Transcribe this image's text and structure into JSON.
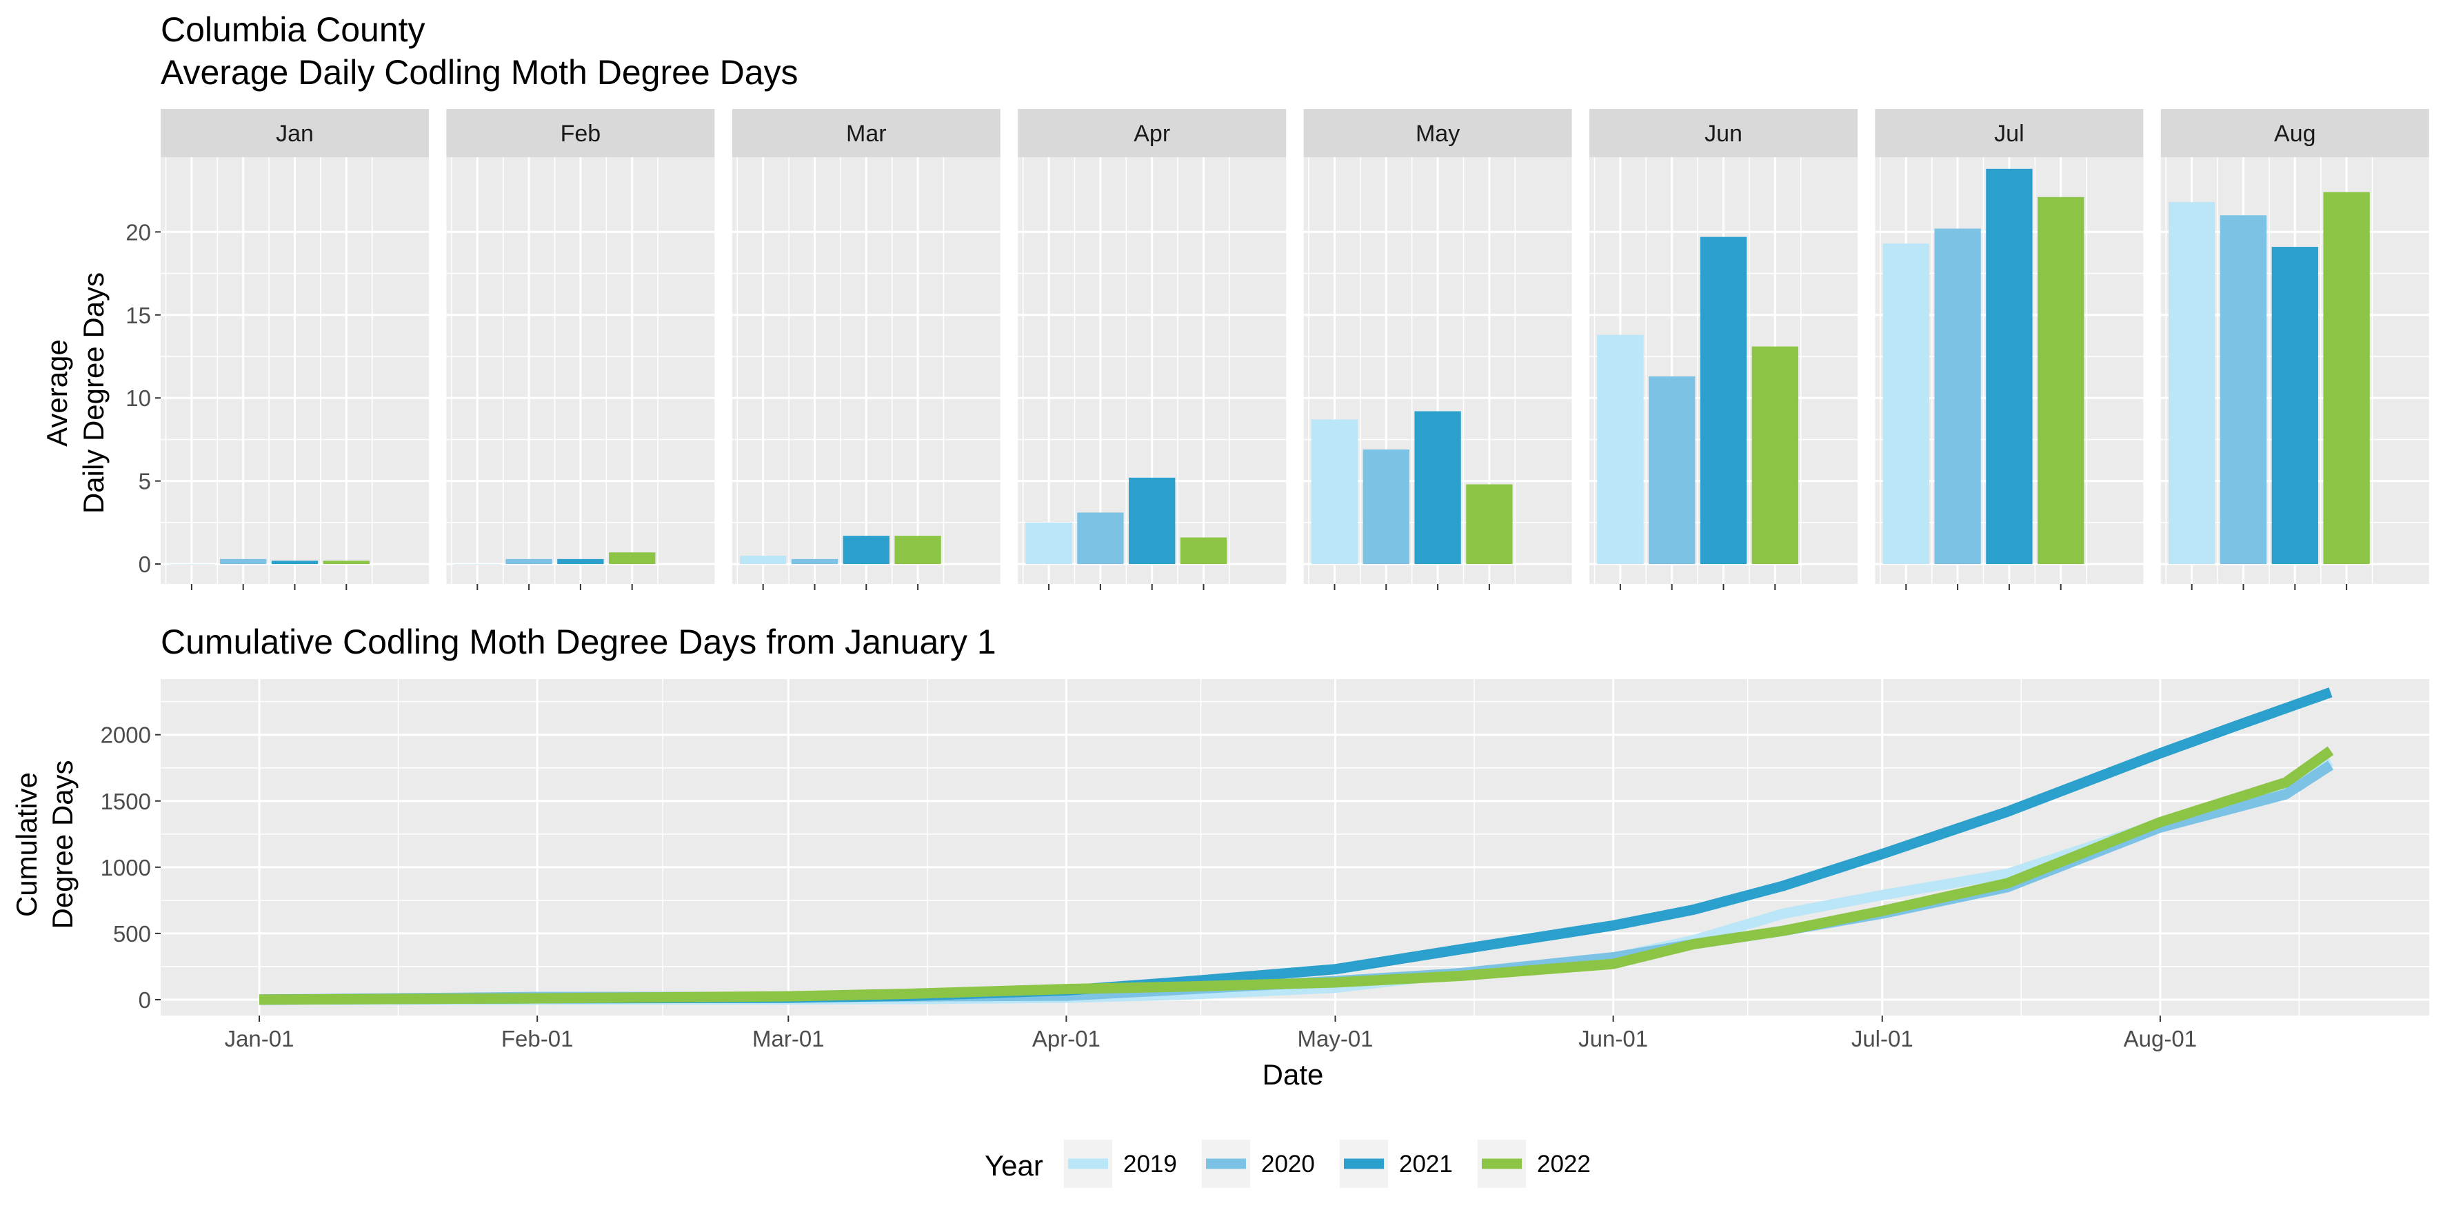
{
  "colors": {
    "2019": "#bae6f7",
    "2020": "#7cc2e4",
    "2021": "#2ba0cc",
    "2022": "#8cc546",
    "panel_bg": "#ebebeb",
    "strip_bg": "#d9d9d9",
    "grid": "#ffffff"
  },
  "legend": {
    "title": "Year",
    "placement": "bottom",
    "items": [
      "2019",
      "2020",
      "2021",
      "2022"
    ]
  },
  "chart_data": [
    {
      "type": "bar",
      "title_line1": "Columbia County",
      "title_line2": "Average Daily Codling Moth Degree Days",
      "ylabel_line1": "Average",
      "ylabel_line2": "Daily Degree Days",
      "ylim": [
        -1.2,
        24.5
      ],
      "yticks": [
        0,
        5,
        10,
        15,
        20
      ],
      "ytick_labels": [
        "0",
        "5",
        "10",
        "15",
        "20"
      ],
      "facets": [
        "Jan",
        "Feb",
        "Mar",
        "Apr",
        "May",
        "Jun",
        "Jul",
        "Aug"
      ],
      "series": [
        {
          "name": "2019",
          "values": [
            0.0,
            0.0,
            0.5,
            2.5,
            8.7,
            13.8,
            19.3,
            21.8
          ]
        },
        {
          "name": "2020",
          "values": [
            0.3,
            0.3,
            0.3,
            3.1,
            6.9,
            11.3,
            20.2,
            21.0
          ]
        },
        {
          "name": "2021",
          "values": [
            0.2,
            0.3,
            1.7,
            5.2,
            9.2,
            19.7,
            23.8,
            19.1
          ]
        },
        {
          "name": "2022",
          "values": [
            0.2,
            0.7,
            1.7,
            1.6,
            4.8,
            13.1,
            22.1,
            22.4
          ]
        }
      ],
      "grid": true
    },
    {
      "type": "line",
      "title": "Cumulative Codling Moth Degree Days from January 1",
      "xlabel": "Date",
      "ylabel_line1": "Cumulative",
      "ylabel_line2": "Degree Days",
      "xlim": [
        "2021-12-21",
        "2022-08-31"
      ],
      "ylim": [
        -120,
        2420
      ],
      "xticks": [
        "2022-01-01",
        "2022-02-01",
        "2022-03-01",
        "2022-04-01",
        "2022-05-01",
        "2022-06-01",
        "2022-07-01",
        "2022-08-01"
      ],
      "xtick_labels": [
        "Jan-01",
        "Feb-01",
        "Mar-01",
        "Apr-01",
        "May-01",
        "Jun-01",
        "Jul-01",
        "Aug-01"
      ],
      "yticks": [
        0,
        500,
        1000,
        1500,
        2000
      ],
      "ytick_labels": [
        "0",
        "500",
        "1000",
        "1500",
        "2000"
      ],
      "grid": true,
      "series": [
        {
          "name": "2019",
          "points": [
            [
              "2022-01-01",
              0
            ],
            [
              "2022-02-01",
              0
            ],
            [
              "2022-03-01",
              2
            ],
            [
              "2022-03-15",
              5
            ],
            [
              "2022-04-01",
              15
            ],
            [
              "2022-04-15",
              40
            ],
            [
              "2022-05-01",
              90
            ],
            [
              "2022-05-15",
              200
            ],
            [
              "2022-06-01",
              315
            ],
            [
              "2022-06-10",
              450
            ],
            [
              "2022-06-20",
              650
            ],
            [
              "2022-07-01",
              790
            ],
            [
              "2022-07-15",
              950
            ],
            [
              "2022-08-01",
              1330
            ],
            [
              "2022-08-15",
              1620
            ],
            [
              "2022-08-20",
              1800
            ]
          ]
        },
        {
          "name": "2020",
          "points": [
            [
              "2022-01-01",
              0
            ],
            [
              "2022-02-01",
              20
            ],
            [
              "2022-03-01",
              20
            ],
            [
              "2022-03-15",
              25
            ],
            [
              "2022-04-01",
              30
            ],
            [
              "2022-04-15",
              80
            ],
            [
              "2022-05-01",
              140
            ],
            [
              "2022-05-15",
              200
            ],
            [
              "2022-06-01",
              320
            ],
            [
              "2022-06-10",
              420
            ],
            [
              "2022-06-20",
              520
            ],
            [
              "2022-07-01",
              650
            ],
            [
              "2022-07-15",
              850
            ],
            [
              "2022-08-01",
              1300
            ],
            [
              "2022-08-15",
              1550
            ],
            [
              "2022-08-20",
              1770
            ]
          ]
        },
        {
          "name": "2021",
          "points": [
            [
              "2022-01-01",
              0
            ],
            [
              "2022-02-01",
              10
            ],
            [
              "2022-03-01",
              15
            ],
            [
              "2022-03-15",
              30
            ],
            [
              "2022-04-01",
              70
            ],
            [
              "2022-04-15",
              140
            ],
            [
              "2022-05-01",
              230
            ],
            [
              "2022-05-15",
              380
            ],
            [
              "2022-06-01",
              560
            ],
            [
              "2022-06-10",
              680
            ],
            [
              "2022-06-20",
              860
            ],
            [
              "2022-07-01",
              1100
            ],
            [
              "2022-07-15",
              1420
            ],
            [
              "2022-08-01",
              1860
            ],
            [
              "2022-08-10",
              2080
            ],
            [
              "2022-08-20",
              2320
            ]
          ]
        },
        {
          "name": "2022",
          "points": [
            [
              "2022-01-01",
              0
            ],
            [
              "2022-02-01",
              10
            ],
            [
              "2022-03-01",
              25
            ],
            [
              "2022-03-15",
              45
            ],
            [
              "2022-04-01",
              80
            ],
            [
              "2022-04-15",
              100
            ],
            [
              "2022-05-01",
              130
            ],
            [
              "2022-05-15",
              180
            ],
            [
              "2022-06-01",
              270
            ],
            [
              "2022-06-10",
              420
            ],
            [
              "2022-06-20",
              520
            ],
            [
              "2022-07-01",
              670
            ],
            [
              "2022-07-15",
              880
            ],
            [
              "2022-08-01",
              1340
            ],
            [
              "2022-08-15",
              1640
            ],
            [
              "2022-08-20",
              1880
            ]
          ]
        }
      ]
    }
  ]
}
